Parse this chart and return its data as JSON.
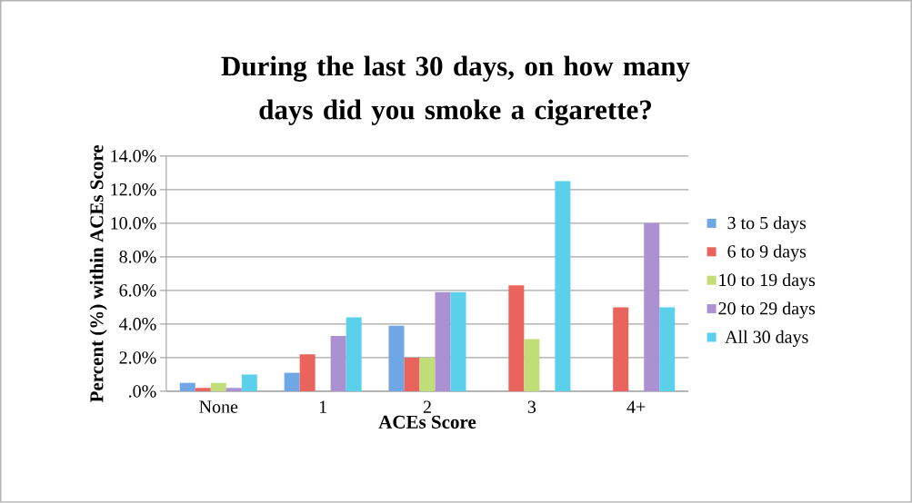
{
  "chart_data": {
    "type": "bar",
    "title": "During the last 30 days, on how many days did you smoke a cigarette?",
    "xlabel": "ACEs Score",
    "ylabel": "Percent (%) within ACEs Score",
    "categories": [
      "None",
      "1",
      "2",
      "3",
      "4+"
    ],
    "series": [
      {
        "name": "3 to 5 days",
        "color": "#6fa6e6",
        "values": [
          0.5,
          1.1,
          3.9,
          null,
          null
        ]
      },
      {
        "name": "6 to 9 days",
        "color": "#e8645c",
        "values": [
          0.2,
          2.2,
          2.0,
          6.3,
          5.0
        ]
      },
      {
        "name": "10 to 19 days",
        "color": "#c0dd78",
        "values": [
          0.5,
          null,
          2.0,
          3.1,
          null
        ]
      },
      {
        "name": "20 to 29 days",
        "color": "#ab90d2",
        "values": [
          0.2,
          3.3,
          5.9,
          null,
          10.0
        ]
      },
      {
        "name": "All 30 days",
        "color": "#5ad0ea",
        "values": [
          1.0,
          4.4,
          5.9,
          12.5,
          5.0
        ]
      }
    ],
    "ylim": [
      0,
      14
    ],
    "yticks": [
      {
        "value": 0,
        "label": ".0%"
      },
      {
        "value": 2,
        "label": "2.0%"
      },
      {
        "value": 4,
        "label": "4.0%"
      },
      {
        "value": 6,
        "label": "6.0%"
      },
      {
        "value": 8,
        "label": "8.0%"
      },
      {
        "value": 10,
        "label": "10.0%"
      },
      {
        "value": 12,
        "label": "12.0%"
      },
      {
        "value": 14,
        "label": "14.0%"
      }
    ],
    "grid": "y",
    "legend": "right"
  }
}
